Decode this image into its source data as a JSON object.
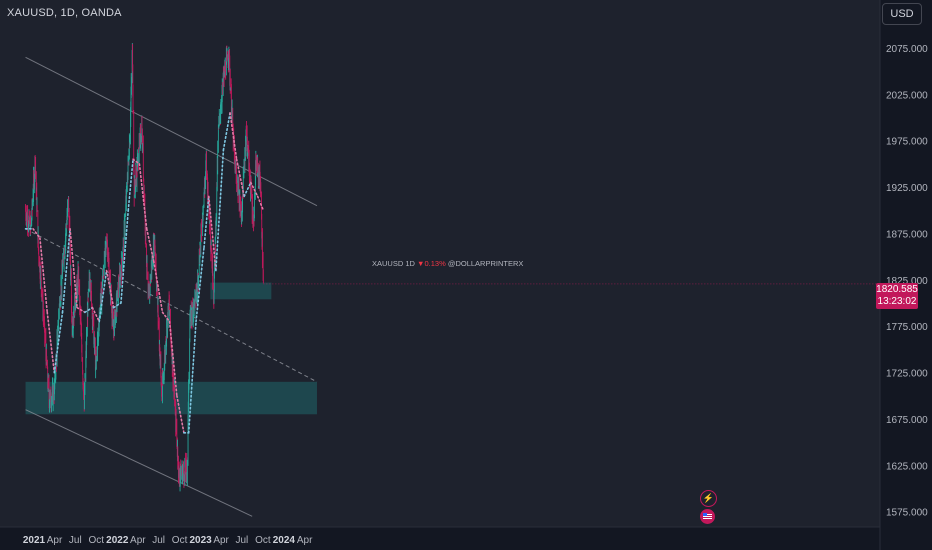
{
  "header": {
    "title": "XAUUSD, 1D, OANDA",
    "currency": "USD"
  },
  "last_price": {
    "price": "1820.585",
    "countdown": "13:23:02"
  },
  "watermark": {
    "symbol": "XAUUSD",
    "interval": "1D",
    "change": "▼0.13%",
    "author": "@DOLLARPRINTERX"
  },
  "icons": {
    "event_top": "lightning-icon",
    "event_bottom": "us-flag-icon"
  },
  "colors": {
    "background": "#131722",
    "up": "#26a69a",
    "down": "#c2185b",
    "zone": "#1e4e55",
    "price_label": "#c2185b"
  },
  "chart_data": {
    "type": "candlestick",
    "symbol": "XAUUSD",
    "interval": "1D",
    "ylim": [
      1565,
      2100
    ],
    "y_ticks": [
      1575,
      1625,
      1675,
      1725,
      1775,
      1825,
      1875,
      1925,
      1975,
      2025,
      2075
    ],
    "y_tick_labels": [
      "1575.000",
      "1625.000",
      "1675.000",
      "1725.000",
      "1775.000",
      "1825.000",
      "1875.000",
      "1925.000",
      "1975.000",
      "2025.000",
      "2075.000"
    ],
    "x_tick_labels": [
      "2021",
      "Apr",
      "Jul",
      "Oct",
      "2022",
      "Apr",
      "Jul",
      "Oct",
      "2023",
      "Apr",
      "Jul",
      "Oct",
      "2024",
      "Apr"
    ],
    "x_tick_dates": [
      "2021-01",
      "2021-04",
      "2021-07",
      "2021-10",
      "2022-01",
      "2022-04",
      "2022-07",
      "2022-10",
      "2023-01",
      "2023-04",
      "2023-07",
      "2023-10",
      "2024-01",
      "2024-04"
    ],
    "price_series": [
      {
        "date": "2020-11-25",
        "close": 1900
      },
      {
        "date": "2020-12-18",
        "close": 1880
      },
      {
        "date": "2021-01-06",
        "close": 1955
      },
      {
        "date": "2021-01-20",
        "close": 1860
      },
      {
        "date": "2021-02-05",
        "close": 1810
      },
      {
        "date": "2021-03-08",
        "close": 1695
      },
      {
        "date": "2021-03-31",
        "close": 1705
      },
      {
        "date": "2021-04-20",
        "close": 1790
      },
      {
        "date": "2021-06-01",
        "close": 1910
      },
      {
        "date": "2021-06-17",
        "close": 1775
      },
      {
        "date": "2021-07-15",
        "close": 1830
      },
      {
        "date": "2021-08-09",
        "close": 1690
      },
      {
        "date": "2021-08-25",
        "close": 1800
      },
      {
        "date": "2021-09-03",
        "close": 1830
      },
      {
        "date": "2021-09-29",
        "close": 1730
      },
      {
        "date": "2021-10-15",
        "close": 1790
      },
      {
        "date": "2021-11-16",
        "close": 1870
      },
      {
        "date": "2021-12-15",
        "close": 1770
      },
      {
        "date": "2022-01-03",
        "close": 1810
      },
      {
        "date": "2022-01-25",
        "close": 1850
      },
      {
        "date": "2022-02-24",
        "close": 1975
      },
      {
        "date": "2022-03-08",
        "close": 2070
      },
      {
        "date": "2022-03-16",
        "close": 1920
      },
      {
        "date": "2022-04-18",
        "close": 1990
      },
      {
        "date": "2022-05-16",
        "close": 1800
      },
      {
        "date": "2022-06-13",
        "close": 1870
      },
      {
        "date": "2022-07-15",
        "close": 1700
      },
      {
        "date": "2022-08-15",
        "close": 1800
      },
      {
        "date": "2022-09-28",
        "close": 1615
      },
      {
        "date": "2022-11-03",
        "close": 1620
      },
      {
        "date": "2022-11-15",
        "close": 1780
      },
      {
        "date": "2022-12-15",
        "close": 1810
      },
      {
        "date": "2023-01-26",
        "close": 1950
      },
      {
        "date": "2023-02-28",
        "close": 1810
      },
      {
        "date": "2023-03-20",
        "close": 1985
      },
      {
        "date": "2023-04-13",
        "close": 2045
      },
      {
        "date": "2023-05-04",
        "close": 2070
      },
      {
        "date": "2023-05-30",
        "close": 1950
      },
      {
        "date": "2023-06-29",
        "close": 1895
      },
      {
        "date": "2023-07-20",
        "close": 1985
      },
      {
        "date": "2023-08-21",
        "close": 1885
      },
      {
        "date": "2023-09-01",
        "close": 1950
      },
      {
        "date": "2023-09-20",
        "close": 1930
      },
      {
        "date": "2023-10-03",
        "close": 1820
      }
    ],
    "ma_series": [
      {
        "date": "2020-11-25",
        "value": 1880
      },
      {
        "date": "2020-12-28",
        "value": 1880
      },
      {
        "date": "2021-01-27",
        "value": 1870
      },
      {
        "date": "2021-02-28",
        "value": 1790
      },
      {
        "date": "2021-03-31",
        "value": 1725
      },
      {
        "date": "2021-05-06",
        "value": 1790
      },
      {
        "date": "2021-06-08",
        "value": 1880
      },
      {
        "date": "2021-07-09",
        "value": 1795
      },
      {
        "date": "2021-08-12",
        "value": 1790
      },
      {
        "date": "2021-09-14",
        "value": 1795
      },
      {
        "date": "2021-10-14",
        "value": 1780
      },
      {
        "date": "2021-11-15",
        "value": 1835
      },
      {
        "date": "2021-12-16",
        "value": 1795
      },
      {
        "date": "2022-01-17",
        "value": 1800
      },
      {
        "date": "2022-02-18",
        "value": 1900
      },
      {
        "date": "2022-03-11",
        "value": 1955
      },
      {
        "date": "2022-04-08",
        "value": 1950
      },
      {
        "date": "2022-05-10",
        "value": 1880
      },
      {
        "date": "2022-06-10",
        "value": 1845
      },
      {
        "date": "2022-07-18",
        "value": 1790
      },
      {
        "date": "2022-08-18",
        "value": 1780
      },
      {
        "date": "2022-09-19",
        "value": 1700
      },
      {
        "date": "2022-10-20",
        "value": 1660
      },
      {
        "date": "2022-11-10",
        "value": 1660
      },
      {
        "date": "2022-12-12",
        "value": 1780
      },
      {
        "date": "2023-01-16",
        "value": 1860
      },
      {
        "date": "2023-02-06",
        "value": 1915
      },
      {
        "date": "2023-03-09",
        "value": 1835
      },
      {
        "date": "2023-04-11",
        "value": 1965
      },
      {
        "date": "2023-05-10",
        "value": 2005
      },
      {
        "date": "2023-06-08",
        "value": 1955
      },
      {
        "date": "2023-07-11",
        "value": 1915
      },
      {
        "date": "2023-08-09",
        "value": 1930
      },
      {
        "date": "2023-09-08",
        "value": 1915
      },
      {
        "date": "2023-10-03",
        "value": 1900
      }
    ],
    "channel": {
      "upper": {
        "from": {
          "date": "2020-11-25",
          "price": 2065
        },
        "to": {
          "date": "2024-05-25",
          "price": 1905
        }
      },
      "middle": {
        "from": {
          "date": "2020-11-25",
          "price": 1880
        },
        "to": {
          "date": "2024-05-25",
          "price": 1715
        }
      },
      "lower": {
        "from": {
          "date": "2020-11-25",
          "price": 1685
        },
        "to": {
          "date": "2023-08-15",
          "price": 1570
        }
      }
    },
    "zones": [
      {
        "from_date": "2020-11-25",
        "to_date": "2024-05-25",
        "low": 1680,
        "high": 1715
      },
      {
        "from_date": "2023-02-13",
        "to_date": "2023-11-07",
        "low": 1804,
        "high": 1822
      }
    ],
    "last_price": 1820.585,
    "grid": false,
    "legend": "none"
  }
}
